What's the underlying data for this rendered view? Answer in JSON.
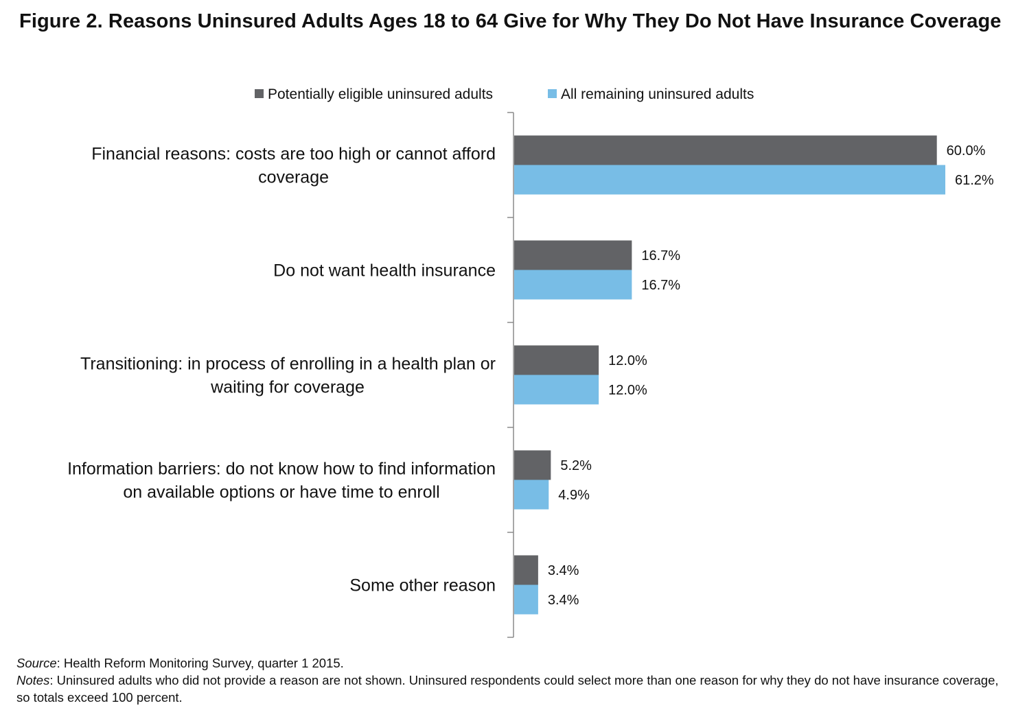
{
  "title": "Figure 2. Reasons Uninsured Adults Ages 18 to 64 Give for Why They Do Not Have Insurance Coverage",
  "legend": [
    {
      "name": "Potentially eligible uninsured adults",
      "color": "#626366"
    },
    {
      "name": "All remaining uninsured adults",
      "color": "#78bde6"
    }
  ],
  "chart_data": {
    "type": "bar",
    "orientation": "horizontal",
    "title": "Figure 2. Reasons Uninsured Adults Ages 18 to 64 Give for Why They Do Not Have Insurance Coverage",
    "categories": [
      [
        "Financial reasons: costs are too high or cannot afford",
        "coverage"
      ],
      [
        "Do not want health insurance"
      ],
      [
        "Transitioning: in process of enrolling in a health plan or",
        "waiting for coverage"
      ],
      [
        "Information barriers: do not know how to find information",
        "on available options or have time to enroll"
      ],
      [
        "Some other reason"
      ]
    ],
    "series": [
      {
        "name": "Potentially eligible uninsured adults",
        "color": "#626366",
        "values": [
          60.0,
          16.7,
          12.0,
          5.2,
          3.4
        ],
        "labels": [
          "60.0%",
          "16.7%",
          "12.0%",
          "5.2%",
          "3.4%"
        ]
      },
      {
        "name": "All remaining uninsured adults",
        "color": "#78bde6",
        "values": [
          61.2,
          16.7,
          12.0,
          4.9,
          3.4
        ],
        "labels": [
          "61.2%",
          "16.7%",
          "12.0%",
          "4.9%",
          "3.4%"
        ]
      }
    ],
    "xlim": [
      0,
      61.2
    ],
    "xlabel": "",
    "ylabel": "",
    "grid": false,
    "legend_position": "top"
  },
  "footnotes": {
    "source_label": "Source",
    "source_text": ": Health Reform Monitoring  Survey, quarter 1 2015.",
    "notes_label": "Notes",
    "notes_text": ": Uninsured adults who did not provide a reason are not shown. Uninsured respondents could select more than one reason for why they do not have insurance coverage, so totals exceed 100 percent."
  }
}
